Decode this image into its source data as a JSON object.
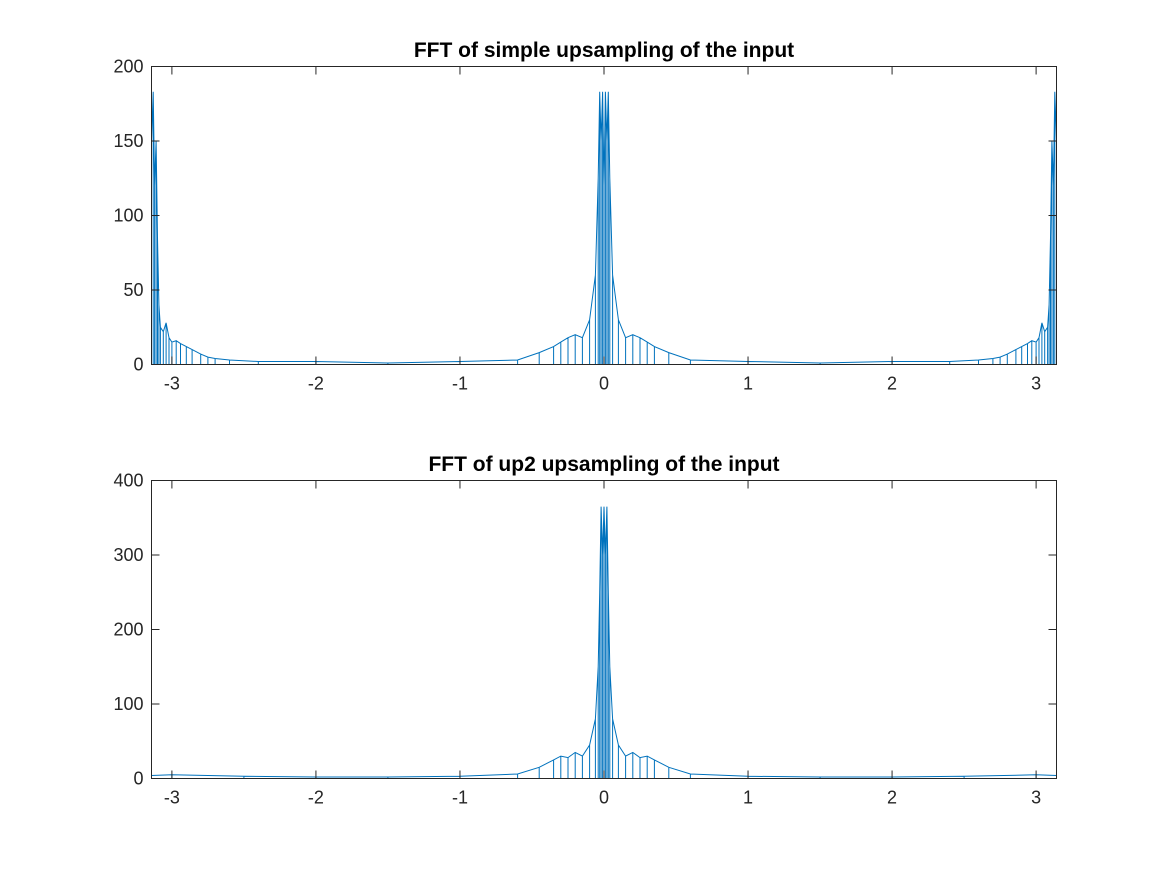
{
  "chart_data": [
    {
      "type": "line",
      "title": "FFT of simple upsampling of the input",
      "xlabel": "",
      "ylabel": "",
      "xlim": [
        -3.1416,
        3.1416
      ],
      "ylim": [
        0,
        200
      ],
      "xticks": [
        -3,
        -2,
        -1,
        0,
        1,
        2,
        3
      ],
      "yticks": [
        0,
        50,
        100,
        150,
        200
      ],
      "grid": false,
      "series": [
        {
          "color": "#0072BD",
          "x": [
            -3.1416,
            -3.13,
            -3.12,
            -3.11,
            -3.1,
            -3.09,
            -3.08,
            -3.06,
            -3.04,
            -3.02,
            -3.0,
            -2.97,
            -2.94,
            -2.9,
            -2.86,
            -2.8,
            -2.75,
            -2.7,
            -2.6,
            -2.4,
            -2.0,
            -1.5,
            -1.0,
            -0.6,
            -0.45,
            -0.35,
            -0.3,
            -0.25,
            -0.2,
            -0.15,
            -0.1,
            -0.06,
            -0.04,
            -0.03,
            -0.02,
            -0.01,
            0.0,
            0.01,
            0.02,
            0.03,
            0.04,
            0.06,
            0.1,
            0.15,
            0.2,
            0.25,
            0.3,
            0.35,
            0.45,
            0.6,
            1.0,
            1.5,
            2.0,
            2.4,
            2.6,
            2.7,
            2.75,
            2.8,
            2.86,
            2.9,
            2.94,
            2.97,
            3.0,
            3.02,
            3.04,
            3.06,
            3.08,
            3.09,
            3.1,
            3.11,
            3.12,
            3.13,
            3.1416
          ],
          "y": [
            150,
            183,
            120,
            150,
            85,
            40,
            25,
            22,
            28,
            18,
            15,
            16,
            14,
            12,
            10,
            7,
            5,
            4,
            3,
            2,
            2,
            1,
            2,
            3,
            8,
            12,
            15,
            18,
            20,
            18,
            30,
            60,
            125,
            183,
            150,
            183,
            120,
            183,
            150,
            183,
            125,
            60,
            30,
            18,
            20,
            18,
            15,
            12,
            8,
            3,
            2,
            1,
            2,
            2,
            3,
            4,
            5,
            7,
            10,
            12,
            14,
            16,
            15,
            18,
            28,
            22,
            25,
            40,
            85,
            150,
            120,
            183,
            150
          ]
        }
      ]
    },
    {
      "type": "line",
      "title": "FFT of up2 upsampling of the input",
      "xlabel": "",
      "ylabel": "",
      "xlim": [
        -3.1416,
        3.1416
      ],
      "ylim": [
        0,
        400
      ],
      "xticks": [
        -3,
        -2,
        -1,
        0,
        1,
        2,
        3
      ],
      "yticks": [
        0,
        100,
        200,
        300,
        400
      ],
      "grid": false,
      "series": [
        {
          "color": "#0072BD",
          "x": [
            -3.1416,
            -3.0,
            -2.5,
            -2.0,
            -1.5,
            -1.0,
            -0.6,
            -0.45,
            -0.35,
            -0.3,
            -0.25,
            -0.2,
            -0.15,
            -0.1,
            -0.06,
            -0.04,
            -0.03,
            -0.02,
            -0.01,
            0.0,
            0.01,
            0.02,
            0.03,
            0.04,
            0.06,
            0.1,
            0.15,
            0.2,
            0.25,
            0.3,
            0.35,
            0.45,
            0.6,
            1.0,
            1.5,
            2.0,
            2.5,
            3.0,
            3.1416
          ],
          "y": [
            4,
            5,
            3,
            2,
            2,
            3,
            6,
            15,
            25,
            30,
            28,
            35,
            30,
            45,
            80,
            150,
            250,
            365,
            300,
            365,
            300,
            365,
            250,
            150,
            80,
            45,
            30,
            35,
            28,
            30,
            25,
            15,
            6,
            3,
            2,
            2,
            3,
            5,
            4
          ]
        }
      ]
    }
  ]
}
